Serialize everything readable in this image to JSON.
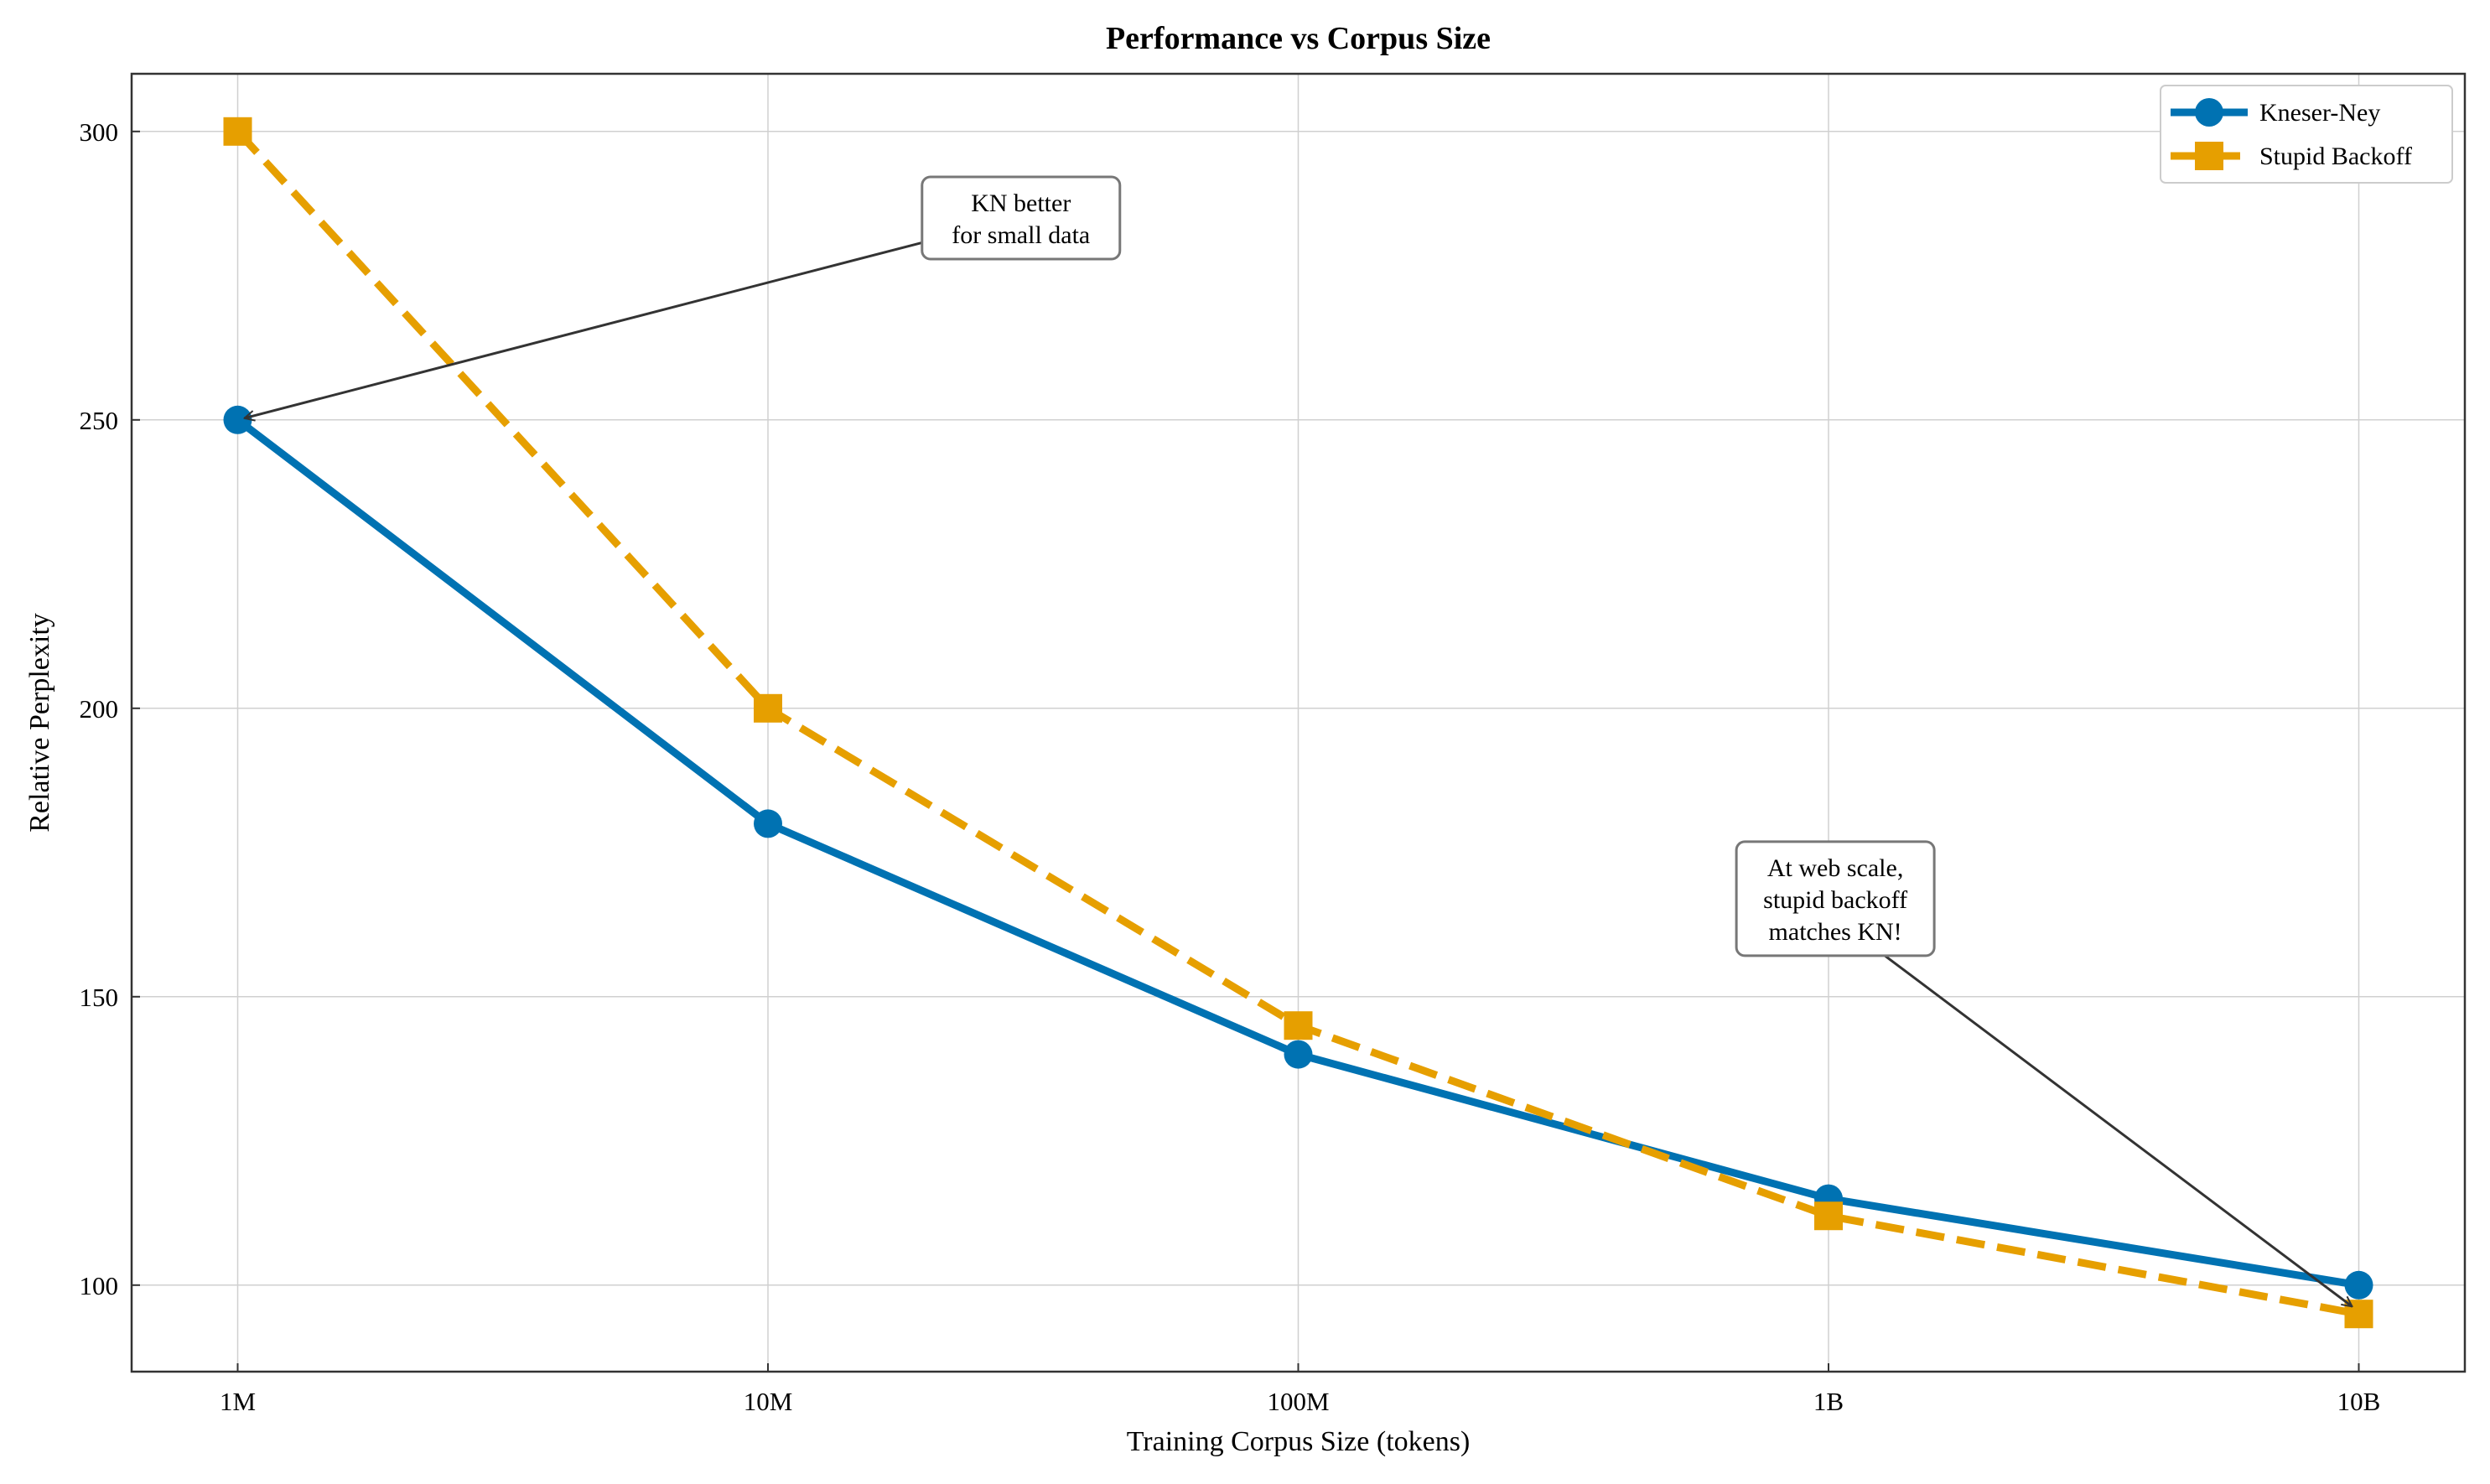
{
  "chart_data": {
    "type": "line",
    "title": "Performance vs Corpus Size",
    "xlabel": "Training Corpus Size (tokens)",
    "ylabel": "Relative Perplexity",
    "x_scale": "log",
    "x": [
      1000000,
      10000000,
      100000000,
      1000000000,
      10000000000
    ],
    "x_tick_labels": [
      "1M",
      "10M",
      "100M",
      "1B",
      "10B"
    ],
    "xlim_log10": [
      5.8,
      10.2
    ],
    "ylim": [
      85,
      310
    ],
    "y_ticks": [
      100,
      150,
      200,
      250,
      300
    ],
    "grid": true,
    "legend_position": "top-right",
    "series": [
      {
        "name": "Kneser-Ney",
        "values": [
          250,
          180,
          140,
          115,
          100
        ],
        "color": "#0072B2",
        "linestyle": "solid",
        "marker": "circle"
      },
      {
        "name": "Stupid Backoff",
        "values": [
          300,
          200,
          145,
          112,
          95
        ],
        "color": "#E69F00",
        "linestyle": "dashed",
        "marker": "square"
      }
    ],
    "annotations": [
      {
        "lines": [
          "KN better",
          "for small data"
        ],
        "point": [
          1000000,
          250
        ],
        "text_at": [
          30000000,
          285
        ]
      },
      {
        "lines": [
          "At web scale,",
          "stupid backoff",
          "matches KN!"
        ],
        "point": [
          10000000000,
          96
        ],
        "text_at": [
          1030000000,
          167
        ]
      }
    ]
  }
}
